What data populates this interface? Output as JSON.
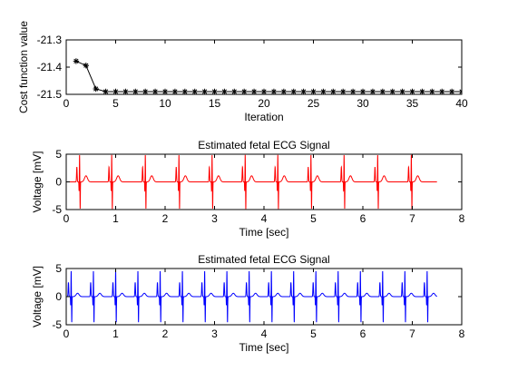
{
  "chart_data": [
    {
      "type": "line",
      "title": "",
      "xlabel": "Iteration",
      "ylabel": "Cost function value",
      "xlim": [
        0,
        40
      ],
      "ylim": [
        -21.5,
        -21.3
      ],
      "xticks": [
        0,
        5,
        10,
        15,
        20,
        25,
        30,
        35,
        40
      ],
      "yticks": [
        -21.5,
        -21.4,
        -21.3
      ],
      "xtick_labels": [
        "0",
        "5",
        "10",
        "15",
        "20",
        "25",
        "30",
        "35",
        "40"
      ],
      "ytick_labels": [
        "-21.5",
        "-21.4",
        "-21.3"
      ],
      "grid": false,
      "marker": "asterisk",
      "color": "#000000",
      "series": [
        {
          "x": [
            1,
            2,
            3,
            4,
            5,
            6,
            7,
            8,
            9,
            10,
            11,
            12,
            13,
            14,
            15,
            16,
            17,
            18,
            19,
            20,
            21,
            22,
            23,
            24,
            25,
            26,
            27,
            28,
            29,
            30,
            31,
            32,
            33,
            34,
            35,
            36,
            37,
            38,
            39,
            40
          ],
          "values": [
            -21.378,
            -21.394,
            -21.48,
            -21.49,
            -21.49,
            -21.49,
            -21.49,
            -21.49,
            -21.49,
            -21.49,
            -21.49,
            -21.49,
            -21.49,
            -21.49,
            -21.49,
            -21.49,
            -21.49,
            -21.49,
            -21.49,
            -21.49,
            -21.49,
            -21.49,
            -21.49,
            -21.49,
            -21.49,
            -21.49,
            -21.49,
            -21.49,
            -21.49,
            -21.49,
            -21.49,
            -21.49,
            -21.49,
            -21.49,
            -21.49,
            -21.49,
            -21.49,
            -21.49,
            -21.49,
            -21.49
          ]
        }
      ]
    },
    {
      "type": "line",
      "title": "Estimated fetal ECG Signal",
      "xlabel": "Time [sec]",
      "ylabel": "Voltage [mV]",
      "xlim": [
        0,
        8
      ],
      "ylim": [
        -5,
        5
      ],
      "xticks": [
        0,
        1,
        2,
        3,
        4,
        5,
        6,
        7,
        8
      ],
      "yticks": [
        -5,
        0,
        5
      ],
      "xtick_labels": [
        "0",
        "1",
        "2",
        "3",
        "4",
        "5",
        "6",
        "7",
        "8"
      ],
      "ytick_labels": [
        "-5",
        "0",
        "5"
      ],
      "grid": false,
      "color": "#ff0000",
      "series": [
        {
          "signal": "ecg-waveform",
          "t_range": [
            0.05,
            7.5
          ],
          "beat_times": [
            0.27,
            0.92,
            1.6,
            2.28,
            2.95,
            3.62,
            4.28,
            4.95,
            5.62,
            6.3,
            6.98
          ],
          "r_peak": 4.9,
          "s_trough": -4.9,
          "t_wave": 1.1
        }
      ]
    },
    {
      "type": "line",
      "title": "Estimated fetal ECG Signal",
      "xlabel": "Time [sec]",
      "ylabel": "Voltage [mV]",
      "xlim": [
        0,
        8
      ],
      "ylim": [
        -5,
        5
      ],
      "xticks": [
        0,
        1,
        2,
        3,
        4,
        5,
        6,
        7,
        8
      ],
      "yticks": [
        -5,
        0,
        5
      ],
      "xtick_labels": [
        "0",
        "1",
        "2",
        "3",
        "4",
        "5",
        "6",
        "7",
        "8"
      ],
      "ytick_labels": [
        "-5",
        "0",
        "5"
      ],
      "grid": false,
      "color": "#0000ff",
      "series": [
        {
          "signal": "ecg-waveform",
          "t_range": [
            0.0,
            7.5
          ],
          "beat_times": [
            0.1,
            0.55,
            1.0,
            1.45,
            1.9,
            2.35,
            2.8,
            3.25,
            3.7,
            4.15,
            4.6,
            5.05,
            5.5,
            5.95,
            6.4,
            6.85,
            7.3
          ],
          "r_peak": 4.6,
          "s_trough": -4.6,
          "t_wave": 0.6
        }
      ]
    }
  ]
}
